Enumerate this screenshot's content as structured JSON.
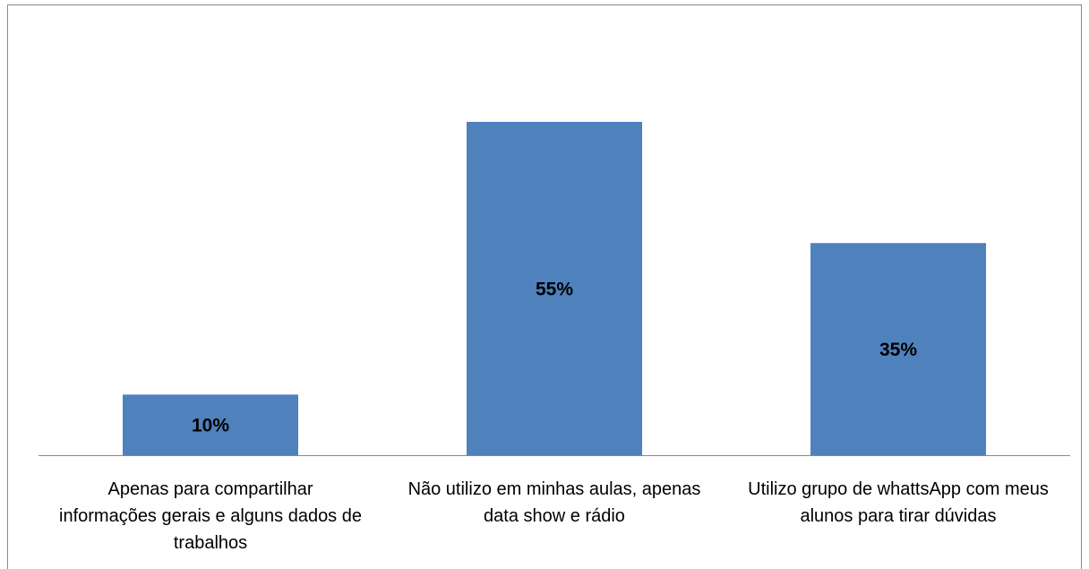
{
  "chart_data": {
    "type": "bar",
    "categories": [
      "Apenas para compartilhar informações gerais e alguns dados de trabalhos",
      "Não utilizo em minhas aulas, apenas data show e rádio",
      "Utilizo grupo de whattsApp com meus alunos para tirar dúvidas"
    ],
    "values": [
      10,
      55,
      35
    ],
    "value_labels": [
      "10%",
      "55%",
      "35%"
    ],
    "color": "#4f81bd"
  }
}
